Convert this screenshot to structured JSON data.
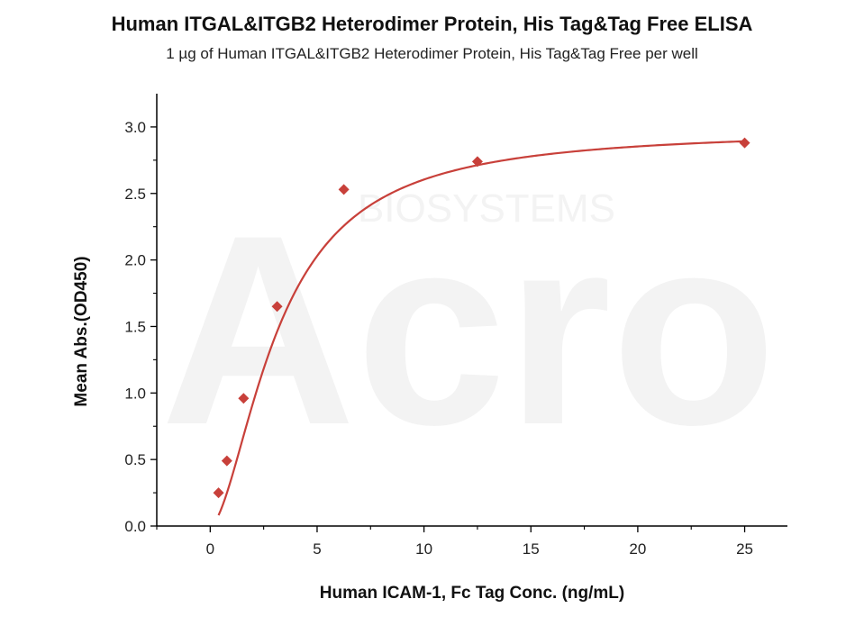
{
  "chart_data": {
    "type": "scatter",
    "title": "Human ITGAL&ITGB2 Heterodimer Protein, His Tag&Tag Free ELISA",
    "subtitle": "1 µg of Human ITGAL&ITGB2 Heterodimer Protein, His Tag&Tag Free per well",
    "xlabel": "Human ICAM-1, Fc Tag Conc. (ng/mL)",
    "ylabel": "Mean Abs.(OD450)",
    "xlim": [
      -2.5,
      27
    ],
    "ylim": [
      0,
      3.25
    ],
    "xticks": [
      0,
      5,
      10,
      15,
      20,
      25
    ],
    "yticks": [
      0.0,
      0.5,
      1.0,
      1.5,
      2.0,
      2.5,
      3.0
    ],
    "ytick_labels": [
      "0.0",
      "0.5",
      "1.0",
      "1.5",
      "2.0",
      "2.5",
      "3.0"
    ],
    "series": [
      {
        "x": [
          0.39,
          0.78,
          1.56,
          3.13,
          6.25,
          12.5,
          25
        ],
        "y": [
          0.25,
          0.49,
          0.96,
          1.65,
          2.53,
          2.74,
          2.88
        ],
        "marker": "diamond",
        "color": "#c8403a"
      }
    ],
    "fit_curve": {
      "type": "4PL",
      "color": "#c8403a",
      "bottom": 0.0,
      "top": 2.98,
      "ec50": 3.2,
      "hill": 1.7
    },
    "watermark": {
      "logo": "Acro",
      "sub": "BIOSYSTEMS"
    },
    "grid": false
  }
}
